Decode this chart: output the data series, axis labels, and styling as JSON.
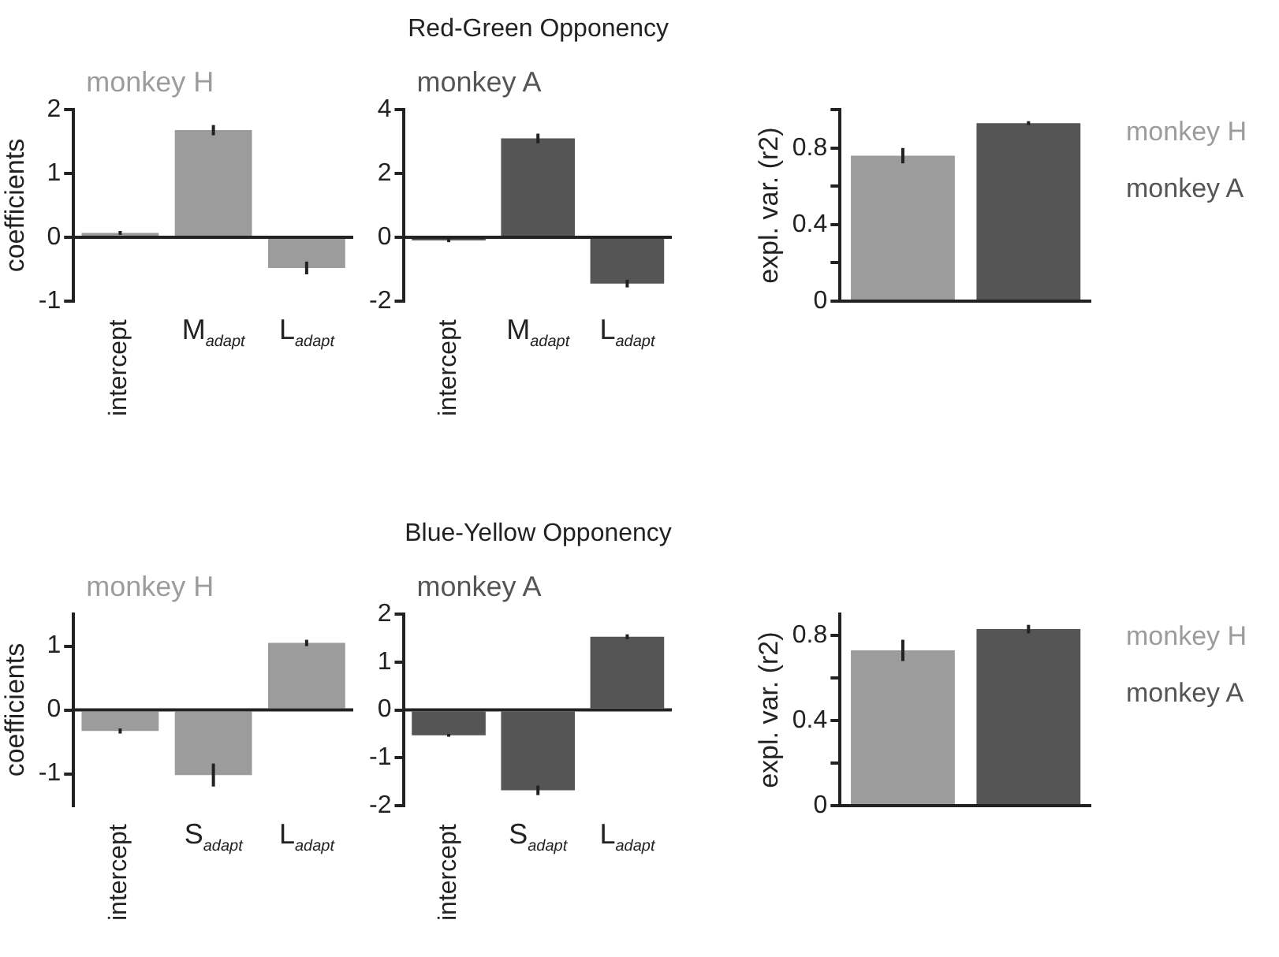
{
  "chart_data": [
    {
      "type": "bar",
      "title": "monkey H",
      "categories": [
        "intercept",
        "M$_{adapt}$",
        "L$_{adapt}$"
      ],
      "values": [
        0.07,
        1.68,
        -0.48
      ],
      "errors": [
        0.03,
        0.08,
        0.1
      ],
      "color": "#9c9c9c",
      "ylabel": "coefficients",
      "ylim": [
        -1,
        2
      ],
      "yticks": [
        -1,
        0,
        1,
        2
      ]
    },
    {
      "type": "bar",
      "title": "Red-Green Opponency",
      "subtitle": "monkey A",
      "categories": [
        "intercept",
        "M$_{adapt}$",
        "L$_{adapt}$"
      ],
      "values": [
        -0.1,
        3.1,
        -1.45
      ],
      "errors": [
        0.05,
        0.15,
        0.12
      ],
      "color": "#555555",
      "ylim": [
        -2,
        4
      ],
      "yticks": [
        -2,
        0,
        2,
        4
      ]
    },
    {
      "type": "bar",
      "categories": [
        null,
        null
      ],
      "ylabel": "expl. var. (r2)",
      "legend": "right",
      "tick_labels": "y",
      "ylim": [
        0,
        1
      ],
      "yticks": [
        0,
        {
          "value": 0.2,
          "label": null
        },
        0.4,
        {
          "value": 0.6,
          "label": null
        },
        0.8,
        {
          "value": 1,
          "label": null
        }
      ],
      "series": [
        {
          "name": "monkey H",
          "color": "#9c9c9c",
          "values": [
            0.76,
            null
          ],
          "errors": [
            0.04,
            null
          ]
        },
        {
          "name": "monkey A",
          "color": "#555555",
          "values": [
            null,
            0.93
          ],
          "errors": [
            null,
            0.01
          ]
        }
      ]
    },
    {
      "type": "bar",
      "title": "monkey H",
      "categories": [
        "intercept",
        "S$_{adapt}$",
        "L$_{adapt}$"
      ],
      "values": [
        -0.33,
        -1.02,
        1.05
      ],
      "errors": [
        0.04,
        0.18,
        0.05
      ],
      "color": "#9c9c9c",
      "ylabel": "coefficients",
      "ylim": [
        -1.5,
        1.5
      ],
      "yticks": [
        -1,
        0,
        1
      ]
    },
    {
      "type": "bar",
      "title": "Blue-Yellow Opponency",
      "subtitle": "monkey A",
      "categories": [
        "intercept",
        "S$_{adapt}$",
        "L$_{adapt}$"
      ],
      "values": [
        -0.53,
        -1.68,
        1.53
      ],
      "errors": [
        0.03,
        0.1,
        0.05
      ],
      "color": "#555555",
      "ylim": [
        -2,
        2
      ],
      "yticks": [
        -2,
        -1,
        0,
        1,
        2
      ]
    },
    {
      "type": "bar",
      "categories": [
        null,
        null
      ],
      "ylabel": "expl. var. (r2)",
      "legend": "right",
      "tick_labels": "y",
      "ylim": [
        0,
        0.9
      ],
      "yticks": [
        0,
        {
          "value": 0.2,
          "label": null
        },
        0.4,
        {
          "value": 0.6,
          "label": null
        },
        0.8
      ],
      "series": [
        {
          "name": "monkey H",
          "color": "#9c9c9c",
          "values": [
            0.73,
            null
          ],
          "errors": [
            0.05,
            null
          ]
        },
        {
          "name": "monkey A",
          "color": "#555555",
          "values": [
            null,
            0.83
          ],
          "errors": [
            null,
            0.02
          ]
        }
      ]
    }
  ]
}
